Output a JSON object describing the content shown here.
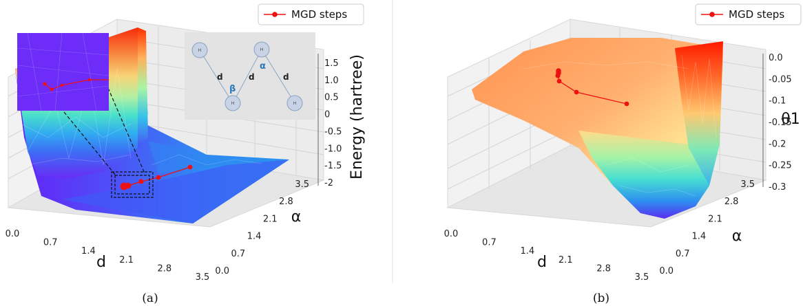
{
  "chart_data": [
    {
      "type": "surface",
      "caption": "(a)",
      "legend": "MGD steps",
      "xlabel": "d",
      "ylabel": "α",
      "zlabel": "Energy (hartree)",
      "x_ticks": [
        "0.0",
        "0.7",
        "1.4",
        "2.1",
        "2.8",
        "3.5"
      ],
      "y_ticks": [
        "0.0",
        "0.7",
        "1.4",
        "2.1",
        "2.8",
        "3.5"
      ],
      "z_ticks": [
        "1.5",
        "1.0",
        "0.5",
        "0",
        "-0.5",
        "-1.0",
        "-1.5",
        "-2"
      ],
      "series": [
        {
          "name": "MGD steps",
          "color": "#ee1111",
          "d": [
            2.8,
            2.2,
            1.9,
            1.8,
            1.8
          ],
          "alpha": [
            1.6,
            1.6,
            1.6,
            1.6,
            1.6
          ],
          "energy": [
            -1.3,
            -1.75,
            -1.85,
            -1.87,
            -1.87
          ]
        }
      ],
      "inset_molecule": {
        "atom_label": "H",
        "bond_label": "d",
        "angle_alpha": "α",
        "angle_beta": "β"
      },
      "colormap": "rainbow"
    },
    {
      "type": "surface",
      "caption": "(b)",
      "legend": "MGD steps",
      "xlabel": "d",
      "ylabel": "α",
      "zlabel": "θ1",
      "x_ticks": [
        "0.0",
        "0.7",
        "1.4",
        "2.1",
        "2.8",
        "3.5"
      ],
      "y_ticks": [
        "0.0",
        "0.7",
        "1.4",
        "2.1",
        "2.8",
        "3.5"
      ],
      "z_ticks": [
        "0.0",
        "-0.05",
        "-0.1",
        "-0.15",
        "-0.2",
        "-0.25",
        "-0.3"
      ],
      "series": [
        {
          "name": "MGD steps",
          "color": "#ee1111",
          "d": [
            2.8,
            2.2,
            1.9,
            1.8,
            1.8,
            1.8
          ],
          "alpha": [
            1.6,
            1.6,
            1.6,
            1.6,
            1.6,
            1.6
          ],
          "theta1": [
            -0.1,
            -0.07,
            -0.05,
            -0.04,
            -0.035,
            -0.03
          ]
        }
      ],
      "colormap": "rainbow"
    }
  ]
}
